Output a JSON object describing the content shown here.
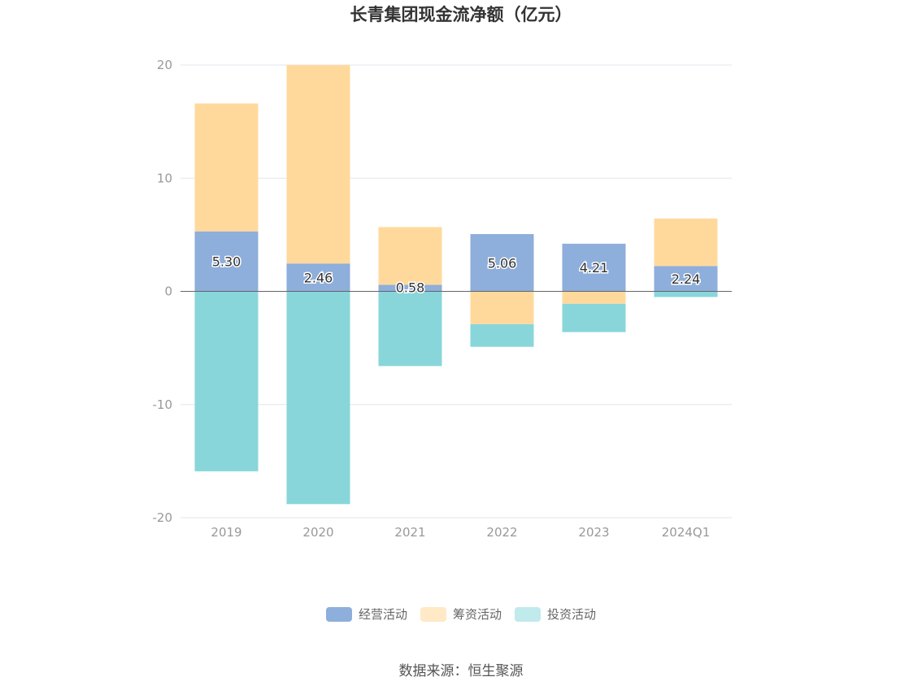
{
  "chart_data": {
    "type": "bar",
    "stacked": true,
    "title": "长青集团现金流净额（亿元）",
    "xlabel": "",
    "ylabel": "",
    "categories": [
      "2019",
      "2020",
      "2021",
      "2022",
      "2023",
      "2024Q1"
    ],
    "ylim": [
      -20,
      20
    ],
    "yticks": [
      20,
      10,
      0,
      -10,
      -20
    ],
    "grid": true,
    "legend_position": "bottom",
    "series": [
      {
        "name": "经营活动",
        "color": "#8eaedb",
        "values": [
          5.3,
          2.46,
          0.58,
          5.06,
          4.21,
          2.24
        ]
      },
      {
        "name": "筹资活动",
        "color": "#ffd99c",
        "values": [
          11.3,
          17.54,
          5.1,
          -2.9,
          -1.1,
          4.2
        ]
      },
      {
        "name": "投资活动",
        "color": "#88d6da",
        "values": [
          -15.9,
          -18.8,
          -6.6,
          -2.0,
          -2.5,
          -0.5
        ]
      }
    ],
    "data_labels": [
      "5.30",
      "2.46",
      "0.58",
      "5.06",
      "4.21",
      "2.24"
    ]
  },
  "legend_colors": [
    "#8eaedb",
    "#ffe9c6",
    "#c0eaec"
  ],
  "source": "数据来源：恒生聚源"
}
